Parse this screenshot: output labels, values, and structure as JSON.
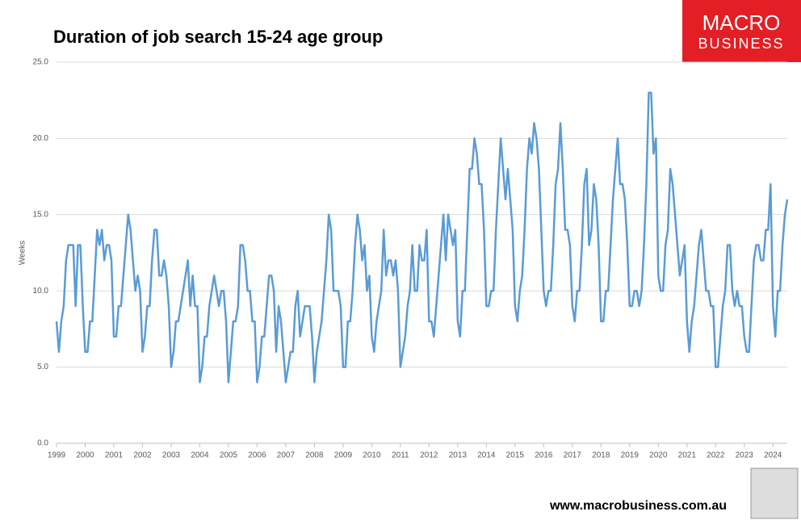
{
  "chart_data": {
    "type": "line",
    "title": "Duration of job search 15-24 age group",
    "y_label": "Weeks",
    "brand": [
      "MACRO",
      "BUSINESS"
    ],
    "footer": "www.macrobusiness.com.au",
    "categories": [
      "1999",
      null,
      null,
      null,
      null,
      null,
      null,
      null,
      null,
      null,
      null,
      null,
      "2000",
      null,
      null,
      null,
      null,
      null,
      null,
      null,
      null,
      null,
      null,
      null,
      "2001",
      null,
      null,
      null,
      null,
      null,
      null,
      null,
      null,
      null,
      null,
      null,
      "2002",
      null,
      null,
      null,
      null,
      null,
      null,
      null,
      null,
      null,
      null,
      null,
      "2003",
      null,
      null,
      null,
      null,
      null,
      null,
      null,
      null,
      null,
      null,
      null,
      "2004",
      null,
      null,
      null,
      null,
      null,
      null,
      null,
      null,
      null,
      null,
      null,
      "2005",
      null,
      null,
      null,
      null,
      null,
      null,
      null,
      null,
      null,
      null,
      null,
      "2006",
      null,
      null,
      null,
      null,
      null,
      null,
      null,
      null,
      null,
      null,
      null,
      "2007",
      null,
      null,
      null,
      null,
      null,
      null,
      null,
      null,
      null,
      null,
      null,
      "2008",
      null,
      null,
      null,
      null,
      null,
      null,
      null,
      null,
      null,
      null,
      null,
      "2009",
      null,
      null,
      null,
      null,
      null,
      null,
      null,
      null,
      null,
      null,
      null,
      "2010",
      null,
      null,
      null,
      null,
      null,
      null,
      null,
      null,
      null,
      null,
      null,
      "2011",
      null,
      null,
      null,
      null,
      null,
      null,
      null,
      null,
      null,
      null,
      null,
      "2012",
      null,
      null,
      null,
      null,
      null,
      null,
      null,
      null,
      null,
      null,
      null,
      "2013",
      null,
      null,
      null,
      null,
      null,
      null,
      null,
      null,
      null,
      null,
      null,
      "2014",
      null,
      null,
      null,
      null,
      null,
      null,
      null,
      null,
      null,
      null,
      null,
      "2015",
      null,
      null,
      null,
      null,
      null,
      null,
      null,
      null,
      null,
      null,
      null,
      "2016",
      null,
      null,
      null,
      null,
      null,
      null,
      null,
      null,
      null,
      null,
      null,
      "2017",
      null,
      null,
      null,
      null,
      null,
      null,
      null,
      null,
      null,
      null,
      null,
      "2018",
      null,
      null,
      null,
      null,
      null,
      null,
      null,
      null,
      null,
      null,
      null,
      "2019",
      null,
      null,
      null,
      null,
      null,
      null,
      null,
      null,
      null,
      null,
      null,
      "2020",
      null,
      null,
      null,
      null,
      null,
      null,
      null,
      null,
      null,
      null,
      null,
      "2021",
      null,
      null,
      null,
      null,
      null,
      null,
      null,
      null,
      null,
      null,
      null,
      "2022",
      null,
      null,
      null,
      null,
      null,
      null,
      null,
      null,
      null,
      null,
      null,
      "2023",
      null,
      null,
      null,
      null,
      null,
      null,
      null,
      null,
      null,
      null,
      null,
      "2024",
      null,
      null,
      null,
      null,
      null,
      null
    ],
    "series": [
      {
        "name": "Weeks",
        "color": "#5b9bd5",
        "values": [
          8,
          6,
          8,
          9,
          12,
          13,
          13,
          13,
          9,
          13,
          13,
          9,
          6,
          6,
          8,
          8,
          11,
          14,
          13,
          14,
          12,
          13,
          13,
          12,
          7,
          7,
          9,
          9,
          11,
          13,
          15,
          14,
          12,
          10,
          11,
          10,
          6,
          7,
          9,
          9,
          12,
          14,
          14,
          11,
          11,
          12,
          11,
          9,
          5,
          6,
          8,
          8,
          9,
          10,
          11,
          12,
          9,
          11,
          9,
          9,
          4,
          5,
          7,
          7,
          9,
          10,
          11,
          10,
          9,
          10,
          10,
          8,
          4,
          6,
          8,
          8,
          9,
          13,
          13,
          12,
          10,
          10,
          8,
          8,
          4,
          5,
          7,
          7,
          9,
          11,
          11,
          10,
          6,
          9,
          8,
          6,
          4,
          5,
          6,
          6,
          9,
          10,
          7,
          8,
          9,
          9,
          9,
          7,
          4,
          6,
          7,
          8,
          10,
          12,
          15,
          14,
          10,
          10,
          10,
          9,
          5,
          5,
          8,
          8,
          10,
          13,
          15,
          14,
          12,
          13,
          10,
          11,
          7,
          6,
          8,
          9,
          10,
          14,
          11,
          12,
          12,
          11,
          12,
          10,
          5,
          6,
          7,
          9,
          10,
          13,
          10,
          10,
          13,
          12,
          12,
          14,
          8,
          8,
          7,
          9,
          11,
          13,
          15,
          12,
          15,
          14,
          13,
          14,
          8,
          7,
          10,
          10,
          14,
          18,
          18,
          20,
          19,
          17,
          17,
          14,
          9,
          9,
          10,
          10,
          14,
          17,
          20,
          18,
          16,
          18,
          16,
          14,
          9,
          8,
          10,
          11,
          14,
          18,
          20,
          19,
          21,
          20,
          18,
          14,
          10,
          9,
          10,
          10,
          13,
          17,
          18,
          21,
          18,
          14,
          14,
          13,
          9,
          8,
          10,
          10,
          13,
          17,
          18,
          13,
          14,
          17,
          16,
          13,
          8,
          8,
          10,
          10,
          13,
          16,
          18,
          20,
          17,
          17,
          16,
          13,
          9,
          9,
          10,
          10,
          9,
          10,
          13,
          17,
          23,
          23,
          19,
          20,
          11,
          10,
          10,
          13,
          14,
          18,
          17,
          15,
          13,
          11,
          12,
          13,
          8,
          6,
          8,
          9,
          11,
          13,
          14,
          12,
          10,
          10,
          9,
          9,
          5,
          5,
          7,
          9,
          10,
          13,
          13,
          10,
          9,
          10,
          9,
          9,
          7,
          6,
          6,
          9,
          12,
          13,
          13,
          12,
          12,
          14,
          14,
          17,
          9,
          7,
          10,
          10,
          13,
          15,
          16
        ]
      }
    ],
    "ylim": [
      0,
      25
    ],
    "yticks": [
      {
        "value": 0,
        "label": "0.0"
      },
      {
        "value": 5,
        "label": "5.0"
      },
      {
        "value": 10,
        "label": "10.0"
      },
      {
        "value": 15,
        "label": "15.0"
      },
      {
        "value": 20,
        "label": "20.0"
      },
      {
        "value": 25,
        "label": "25.0"
      }
    ],
    "grid": true
  }
}
